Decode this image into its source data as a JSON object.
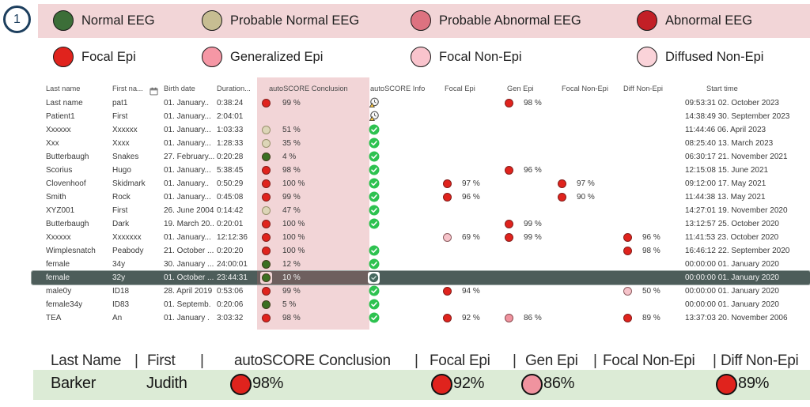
{
  "badge": {
    "number": "1"
  },
  "colors": {
    "red": "#e0231d",
    "pink": "#f0939f",
    "palepink": "#f6c3ca",
    "tan": "#ddd6b8",
    "green": "#3b7022",
    "selected_row_bg": "#4d5d5a",
    "legend_band_pink": "#f2d5d7",
    "summary_band_green": "#dcebd6"
  },
  "legend": {
    "conclusion_types": [
      {
        "label": "Normal EEG",
        "color": "#3c6e38"
      },
      {
        "label": "Probable Normal EEG",
        "color": "#c7bd92"
      },
      {
        "label": "Probable Abnormal EEG",
        "color": "#dd7280"
      },
      {
        "label": "Abnormal EEG",
        "color": "#c21f26"
      }
    ],
    "finding_types": [
      {
        "label": "Focal Epi",
        "color": "#e0231d"
      },
      {
        "label": "Generalized Epi",
        "color": "#f597a5"
      },
      {
        "label": "Focal Non-Epi",
        "color": "#f9c4cd"
      },
      {
        "label": "Diffused Non-Epi",
        "color": "#fad3d9"
      }
    ]
  },
  "table": {
    "headers": [
      {
        "key": "last",
        "label": "Last name"
      },
      {
        "key": "first",
        "label": "First na..."
      },
      {
        "key": "birth",
        "label": "Birth date",
        "icon": "calendar-icon"
      },
      {
        "key": "duration",
        "label": "Duration..."
      },
      {
        "key": "conclusion",
        "label": "autoSCORE Conclusion"
      },
      {
        "key": "info",
        "label": "autoSCORE Info"
      },
      {
        "key": "focal",
        "label": "Focal Epi"
      },
      {
        "key": "gen",
        "label": "Gen Epi"
      },
      {
        "key": "fne",
        "label": "Focal Non-Epi"
      },
      {
        "key": "dne",
        "label": "Diff Non-Epi"
      },
      {
        "key": "start",
        "label": "Start time"
      }
    ],
    "rows": [
      {
        "last": "Last name",
        "first": "pat1",
        "birth": "01. January..",
        "duration": "0:38:24",
        "conclusion": {
          "pct": "99 %",
          "color": "red"
        },
        "info": "warning-clock",
        "gen": {
          "pct": "98 %",
          "color": "red"
        },
        "start": "09:53:31 02. October 2023"
      },
      {
        "last": "Patient1",
        "first": "First",
        "birth": "01. January...",
        "duration": "2:04:01",
        "conclusion": null,
        "info": "warning-clock",
        "start": "14:38:49 30. September 2023"
      },
      {
        "last": "Xxxxxx",
        "first": "Xxxxxx",
        "birth": "01. January...",
        "duration": "1:03:33",
        "conclusion": {
          "pct": "51 %",
          "color": "tan"
        },
        "info": "check",
        "start": "11:44:46 06. April 2023"
      },
      {
        "last": "Xxx",
        "first": "Xxxx",
        "birth": "01. January...",
        "duration": "1:28:33",
        "conclusion": {
          "pct": "35 %",
          "color": "tan"
        },
        "info": "check",
        "start": "08:25:40 13. March 2023"
      },
      {
        "last": "Butterbaugh",
        "first": "Snakes",
        "birth": "27. February...",
        "duration": "0:20:28",
        "conclusion": {
          "pct": "4 %",
          "color": "green"
        },
        "info": "check",
        "start": "06:30:17 21. November 2021"
      },
      {
        "last": "Scorius",
        "first": "Hugo",
        "birth": "01. January...",
        "duration": "5:38:45",
        "conclusion": {
          "pct": "98 %",
          "color": "red"
        },
        "info": "check",
        "gen": {
          "pct": "96 %",
          "color": "red"
        },
        "start": "12:15:08 15. June 2021"
      },
      {
        "last": "Clovenhoof",
        "first": "Skidmark",
        "birth": "01. January..",
        "duration": "0:50:29",
        "conclusion": {
          "pct": "100 %",
          "color": "red"
        },
        "info": "check",
        "focal": {
          "pct": "97 %",
          "color": "red"
        },
        "fne": {
          "pct": "97 %",
          "color": "red"
        },
        "start": "09:12:00 17. May 2021"
      },
      {
        "last": "Smith",
        "first": "Rock",
        "birth": "01. January...",
        "duration": "0:45:08",
        "conclusion": {
          "pct": "99 %",
          "color": "red"
        },
        "info": "check",
        "focal": {
          "pct": "96 %",
          "color": "red"
        },
        "fne": {
          "pct": "90 %",
          "color": "red"
        },
        "start": "11:44:38 13. May 2021"
      },
      {
        "last": "XYZ001",
        "first": "First",
        "birth": "26. June 2004",
        "duration": "0:14:42",
        "conclusion": {
          "pct": "47 %",
          "color": "tan"
        },
        "info": "check",
        "start": "14:27:01 19. November 2020"
      },
      {
        "last": "Butterbaugh",
        "first": "Dark",
        "birth": "19. March 20..",
        "duration": "0:20:01",
        "conclusion": {
          "pct": "100 %",
          "color": "red"
        },
        "info": "check",
        "gen": {
          "pct": "99 %",
          "color": "red"
        },
        "start": "13:12:57 25. October 2020"
      },
      {
        "last": "Xxxxxx",
        "first": "Xxxxxxx",
        "birth": "01. January...",
        "duration": "12:12:36",
        "conclusion": {
          "pct": "100 %",
          "color": "red"
        },
        "info": null,
        "focal": {
          "pct": "69 %",
          "color": "palepink"
        },
        "gen": {
          "pct": "99 %",
          "color": "red"
        },
        "dne": {
          "pct": "96 %",
          "color": "red"
        },
        "start": "11:41:53 23. October 2020"
      },
      {
        "last": "Wimplesnatch",
        "first": "Peabody",
        "birth": "21. October ...",
        "duration": "0:20:20",
        "conclusion": {
          "pct": "100 %",
          "color": "red"
        },
        "info": "check",
        "dne": {
          "pct": "98 %",
          "color": "red"
        },
        "start": "16:46:12 22. September 2020"
      },
      {
        "last": "female",
        "first": "34y",
        "birth": "30. January ...",
        "duration": "24:00:01",
        "conclusion": {
          "pct": "12 %",
          "color": "green"
        },
        "info": "check",
        "start": "00:00:00 01. January 2020"
      },
      {
        "last": "female",
        "first": "32y",
        "birth": "01. October ...",
        "duration": "23:44:31",
        "conclusion": {
          "pct": "10 %",
          "color": "green"
        },
        "info": "check-selected",
        "selected": true,
        "start": "00:00:00 01. January 2020"
      },
      {
        "last": "male0y",
        "first": "ID18",
        "birth": "28. April 2019",
        "duration": "0:53:06",
        "conclusion": {
          "pct": "99 %",
          "color": "red"
        },
        "info": "check",
        "focal": {
          "pct": "94 %",
          "color": "red"
        },
        "dne": {
          "pct": "50 %",
          "color": "palepink"
        },
        "start": "00:00:00 01. January 2020"
      },
      {
        "last": "female34y",
        "first": "ID83",
        "birth": "01. Septemb.",
        "duration": "0:20:06",
        "conclusion": {
          "pct": "5 %",
          "color": "green"
        },
        "info": "check",
        "start": "00:00:00 01. January 2020"
      },
      {
        "last": "TEA",
        "first": "An",
        "birth": "01. January .",
        "duration": "3:03:32",
        "conclusion": {
          "pct": "98 %",
          "color": "red"
        },
        "info": "check",
        "focal": {
          "pct": "92 %",
          "color": "red"
        },
        "gen": {
          "pct": "86 %",
          "color": "pink"
        },
        "dne": {
          "pct": "89 %",
          "color": "red"
        },
        "start": "13:37:03 20. November 2006"
      }
    ]
  },
  "summary": {
    "separator": "|",
    "headers": [
      "Last Name",
      "First",
      "autoSCORE Conclusion",
      "Focal Epi",
      "Gen Epi",
      "Focal Non-Epi",
      "Diff Non-Epi"
    ],
    "row": {
      "last": "Barker",
      "first": "Judith",
      "conclusion": {
        "pct": "98%",
        "color": "red"
      },
      "focal": {
        "pct": "92%",
        "color": "red"
      },
      "gen": {
        "pct": "86%",
        "color": "pink"
      },
      "dne": {
        "pct": "89%",
        "color": "red"
      }
    }
  }
}
